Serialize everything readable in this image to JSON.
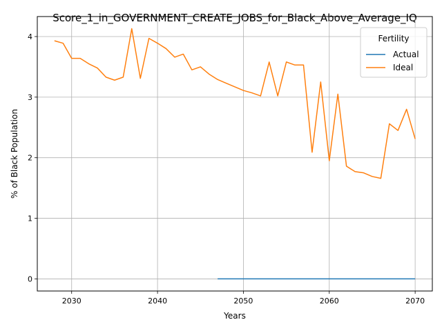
{
  "chart_data": {
    "type": "line",
    "title": "Score_1_in_GOVERNMENT_CREATE_JOBS_for_Black_Above_Average_IQ",
    "xlabel": "Years",
    "ylabel": "% of Black Population",
    "xlim": [
      2026,
      2072
    ],
    "ylim": [
      -0.2,
      4.33
    ],
    "xticks": [
      2030,
      2040,
      2050,
      2060,
      2070
    ],
    "yticks": [
      0,
      1,
      2,
      3,
      4
    ],
    "grid": true,
    "legend": {
      "title": "Fertility",
      "position": "top-right"
    },
    "series": [
      {
        "name": "Actual",
        "color": "#1f77b4",
        "x": [
          2047,
          2048,
          2049,
          2050,
          2051,
          2052,
          2053,
          2054,
          2055,
          2056,
          2057,
          2058,
          2059,
          2060,
          2061,
          2062,
          2063,
          2064,
          2065,
          2066,
          2067,
          2068,
          2069,
          2070
        ],
        "values": [
          0,
          0,
          0,
          0,
          0,
          0,
          0,
          0,
          0,
          0,
          0,
          0,
          0,
          0,
          0,
          0,
          0,
          0,
          0,
          0,
          0,
          0,
          0,
          0
        ]
      },
      {
        "name": "Ideal",
        "color": "#ff7f0e",
        "x": [
          2028,
          2029,
          2030,
          2031,
          2032,
          2033,
          2034,
          2035,
          2036,
          2037,
          2038,
          2039,
          2040,
          2041,
          2042,
          2043,
          2044,
          2045,
          2046,
          2047,
          2048,
          2049,
          2050,
          2051,
          2052,
          2053,
          2054,
          2055,
          2056,
          2057,
          2058,
          2059,
          2060,
          2061,
          2062,
          2063,
          2064,
          2065,
          2066,
          2067,
          2068,
          2069,
          2070
        ],
        "values": [
          3.93,
          3.89,
          3.64,
          3.64,
          3.55,
          3.48,
          3.33,
          3.28,
          3.33,
          4.13,
          3.31,
          3.97,
          3.89,
          3.8,
          3.66,
          3.71,
          3.45,
          3.5,
          3.38,
          3.29,
          3.23,
          3.17,
          3.11,
          3.07,
          3.02,
          3.58,
          3.02,
          3.58,
          3.53,
          3.53,
          2.09,
          3.25,
          1.95,
          3.05,
          1.86,
          1.77,
          1.75,
          1.69,
          1.66,
          2.56,
          2.45,
          2.8,
          2.31
        ]
      }
    ]
  }
}
